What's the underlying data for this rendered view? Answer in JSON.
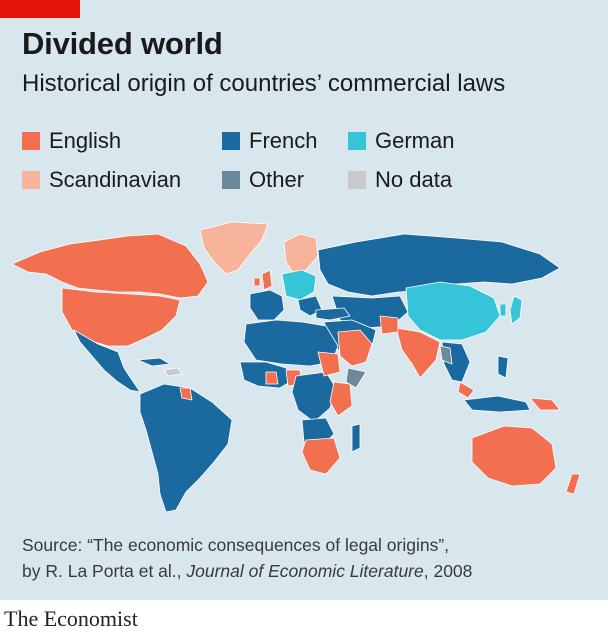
{
  "title": "Divided world",
  "subtitle": "Historical origin of countries’ commercial laws",
  "legend": [
    {
      "label": "English",
      "color": "#f26f50"
    },
    {
      "label": "French",
      "color": "#1a6aa0"
    },
    {
      "label": "German",
      "color": "#35c4d8"
    },
    {
      "label": "Scandinavian",
      "color": "#f8b39b"
    },
    {
      "label": "Other",
      "color": "#6d8a9c"
    },
    {
      "label": "No data",
      "color": "#c9c9c9"
    }
  ],
  "source": {
    "prefix": "Source: “The economic consequences of legal origins”,",
    "authors": "by R. La Porta et al., ",
    "journal": "Journal of Economic Literature",
    "year": ", 2008"
  },
  "brand": "The Economist"
}
